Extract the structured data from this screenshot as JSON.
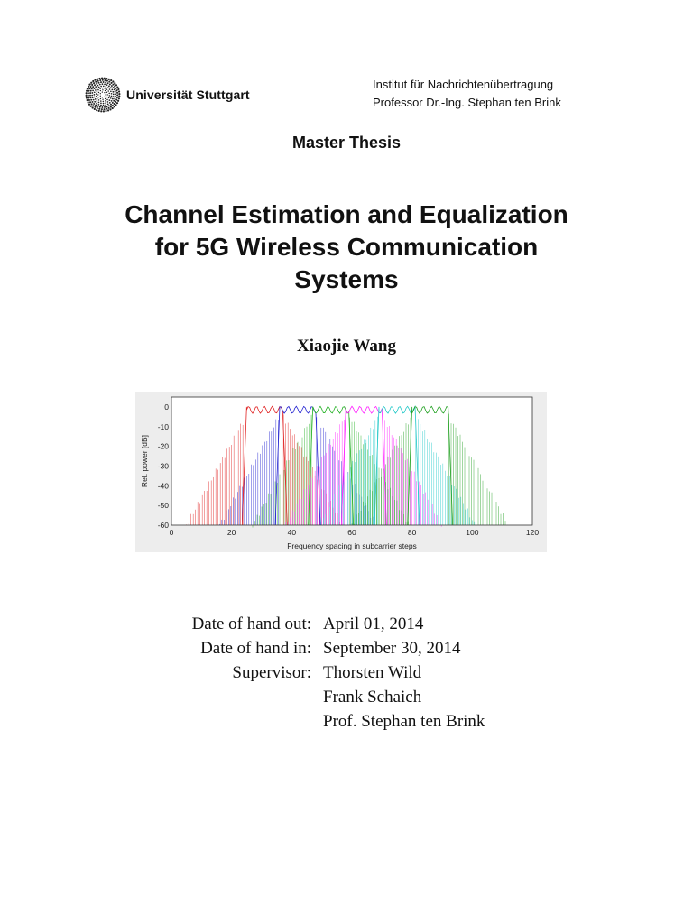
{
  "header": {
    "logo_text": "Universität Stuttgart",
    "institute_line1": "Institut für Nachrichtenübertragung",
    "institute_line2": "Professor Dr.-Ing. Stephan ten Brink"
  },
  "thesis_type": "Master Thesis",
  "title": {
    "line1": "Channel Estimation and Equalization",
    "line2": "for 5G Wireless Communication",
    "line3": "Systems"
  },
  "author": "Xiaojie Wang",
  "figure": {
    "xlabel": "Frequency spacing in subcarrier steps",
    "ylabel": "Rel. power [dB]",
    "xticks": [
      "0",
      "20",
      "40",
      "60",
      "80",
      "100",
      "120"
    ],
    "yticks": [
      "0",
      "-10",
      "-20",
      "-30",
      "-40",
      "-50",
      "-60"
    ],
    "xlim": [
      0,
      120
    ],
    "ylim": [
      -60,
      5
    ],
    "series_colors": [
      "#e02020",
      "#2020d0",
      "#d020d0",
      "#20b020",
      "#ff20ff",
      "#20c8c8",
      "#20a020"
    ],
    "blocks": [
      {
        "color": "#e02020",
        "start": 25,
        "end": 37
      },
      {
        "color": "#2020d0",
        "start": 36,
        "end": 48
      },
      {
        "color": "#20b020",
        "start": 47,
        "end": 59
      },
      {
        "color": "#ff20ff",
        "start": 58,
        "end": 70
      },
      {
        "color": "#20c8c8",
        "start": 69,
        "end": 81
      },
      {
        "color": "#20a020",
        "start": 80,
        "end": 92
      }
    ]
  },
  "info": {
    "rows": [
      {
        "label": "Date of hand out:",
        "value": "April 01, 2014"
      },
      {
        "label": "Date of hand in:",
        "value": "September 30, 2014"
      },
      {
        "label": "Supervisor:",
        "value": "Thorsten Wild"
      },
      {
        "label": "",
        "value": "Frank Schaich"
      },
      {
        "label": "",
        "value": "Prof. Stephan ten Brink"
      }
    ]
  }
}
